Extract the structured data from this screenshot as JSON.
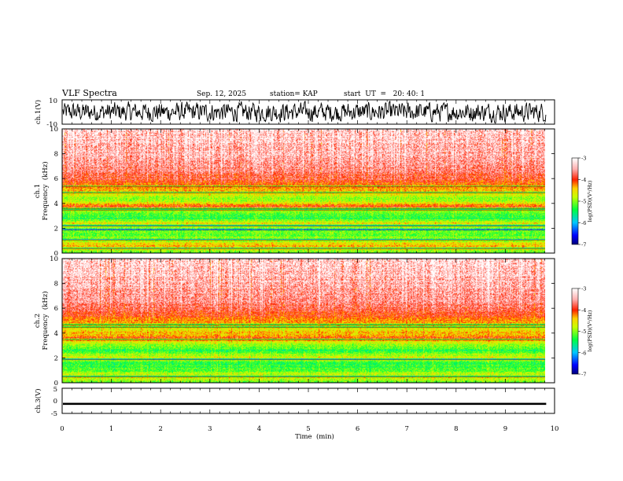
{
  "chart_data": {
    "type": "heatmap",
    "title": "VLF Spectra",
    "date": "Sep. 12, 2025",
    "station": "station= KAP",
    "start": "start  UT  =   20: 40: 1",
    "xlabel": "Time  (min)",
    "xlim": [
      0,
      10
    ],
    "x_ticks": [
      "0",
      "1",
      "2",
      "3",
      "4",
      "5",
      "6",
      "7",
      "8",
      "9",
      "10"
    ],
    "data_end_min": 9.83,
    "panels": [
      {
        "id": "ch1-waveform",
        "type": "line",
        "ylabel": "ch.1(V)",
        "ylim": [
          -10,
          10
        ],
        "y_ticks": [
          "10",
          "-10"
        ],
        "trace_amplitude_v": 8
      },
      {
        "id": "ch1-spectrogram",
        "type": "heatmap",
        "ylabel_top": "ch.1",
        "ylabel": "Frequency  (kHz)",
        "ylim": [
          0,
          10
        ],
        "y_ticks": [
          "0",
          "2",
          "4",
          "6",
          "8",
          "10"
        ],
        "log_psd_profile": [
          {
            "f_khz": 0.0,
            "value": -5.2
          },
          {
            "f_khz": 0.5,
            "value": -4.4
          },
          {
            "f_khz": 1.0,
            "value": -4.9
          },
          {
            "f_khz": 1.5,
            "value": -5.2
          },
          {
            "f_khz": 2.0,
            "value": -5.0
          },
          {
            "f_khz": 2.4,
            "value": -4.6
          },
          {
            "f_khz": 2.8,
            "value": -5.3
          },
          {
            "f_khz": 3.3,
            "value": -5.1
          },
          {
            "f_khz": 3.7,
            "value": -3.9
          },
          {
            "f_khz": 4.2,
            "value": -5.0
          },
          {
            "f_khz": 5.0,
            "value": -4.5
          },
          {
            "f_khz": 6.0,
            "value": -3.8
          },
          {
            "f_khz": 8.0,
            "value": -3.4
          },
          {
            "f_khz": 10.0,
            "value": -3.2
          }
        ],
        "line_bands_khz": [
          0.4,
          1.1,
          1.9,
          2.2,
          3.5,
          3.6,
          4.9,
          5.4
        ]
      },
      {
        "id": "ch2-spectrogram",
        "type": "heatmap",
        "ylabel_top": "ch.2",
        "ylabel": "Frequency  (kHz)",
        "ylim": [
          0,
          10
        ],
        "y_ticks": [
          "0",
          "2",
          "4",
          "6",
          "8",
          "10"
        ],
        "log_psd_profile": [
          {
            "f_khz": 0.0,
            "value": -5.2
          },
          {
            "f_khz": 0.5,
            "value": -4.5
          },
          {
            "f_khz": 1.0,
            "value": -5.2
          },
          {
            "f_khz": 1.6,
            "value": -5.3
          },
          {
            "f_khz": 2.0,
            "value": -4.6
          },
          {
            "f_khz": 2.6,
            "value": -5.3
          },
          {
            "f_khz": 3.1,
            "value": -5.0
          },
          {
            "f_khz": 3.6,
            "value": -4.1
          },
          {
            "f_khz": 4.2,
            "value": -4.6
          },
          {
            "f_khz": 5.0,
            "value": -4.2
          },
          {
            "f_khz": 6.0,
            "value": -3.7
          },
          {
            "f_khz": 8.0,
            "value": -3.4
          },
          {
            "f_khz": 10.0,
            "value": -3.2
          }
        ],
        "line_bands_khz": [
          0.5,
          1.9,
          3.5,
          4.5,
          4.7
        ]
      },
      {
        "id": "ch3-waveform",
        "type": "line",
        "ylabel": "ch.3(V)",
        "ylim": [
          -5,
          5
        ],
        "y_ticks": [
          "5",
          "0",
          "-5"
        ],
        "trace_center_v": -1.2,
        "trace_amplitude_v": 0.4
      }
    ],
    "colorbars": [
      {
        "for": "ch1-spectrogram",
        "label": "log(PSD)(V²/Hz)",
        "range": [
          -7,
          -3
        ],
        "ticks": [
          "-3",
          "-4",
          "-5",
          "-6",
          "-7"
        ]
      },
      {
        "for": "ch2-spectrogram",
        "label": "log(PSD)(V²/Hz)",
        "range": [
          -7,
          -3
        ],
        "ticks": [
          "-3",
          "-4",
          "-5",
          "-6",
          "-7"
        ]
      }
    ],
    "colormap": [
      {
        "value": -7.0,
        "color": "#000080"
      },
      {
        "value": -6.6,
        "color": "#0000ff"
      },
      {
        "value": -6.0,
        "color": "#00c8ff"
      },
      {
        "value": -5.4,
        "color": "#00ff40"
      },
      {
        "value": -4.8,
        "color": "#c8ff00"
      },
      {
        "value": -4.4,
        "color": "#ffd000"
      },
      {
        "value": -4.0,
        "color": "#ff2000"
      },
      {
        "value": -3.5,
        "color": "#ffb0b0"
      },
      {
        "value": -3.0,
        "color": "#ffffff"
      }
    ]
  }
}
